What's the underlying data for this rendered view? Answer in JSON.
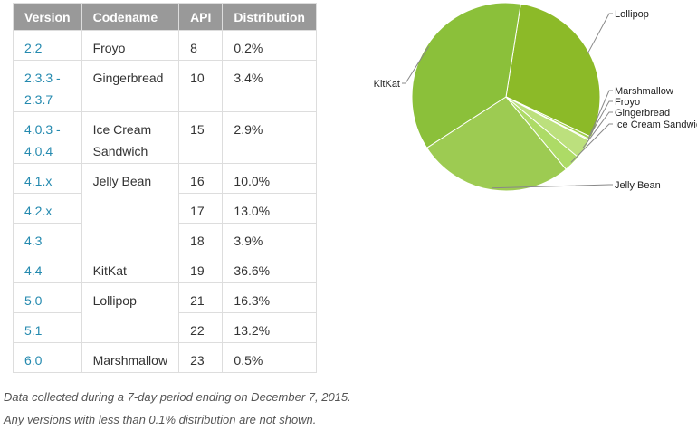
{
  "table": {
    "headers": [
      "Version",
      "Codename",
      "API",
      "Distribution"
    ],
    "rows": [
      {
        "version": "2.2",
        "codename": "Froyo",
        "api": "8",
        "dist": "0.2%"
      },
      {
        "version": "2.3.3 -\n2.3.7",
        "codename": "Gingerbread",
        "api": "10",
        "dist": "3.4%"
      },
      {
        "version": "4.0.3 -\n4.0.4",
        "codename": "Ice Cream\nSandwich",
        "api": "15",
        "dist": "2.9%"
      },
      {
        "version": "4.1.x",
        "codename": "Jelly Bean",
        "api": "16",
        "dist": "10.0%"
      },
      {
        "version": "4.2.x",
        "codename": "",
        "api": "17",
        "dist": "13.0%"
      },
      {
        "version": "4.3",
        "codename": "",
        "api": "18",
        "dist": "3.9%"
      },
      {
        "version": "4.4",
        "codename": "KitKat",
        "api": "19",
        "dist": "36.6%"
      },
      {
        "version": "5.0",
        "codename": "Lollipop",
        "api": "21",
        "dist": "16.3%"
      },
      {
        "version": "5.1",
        "codename": "",
        "api": "22",
        "dist": "13.2%"
      },
      {
        "version": "6.0",
        "codename": "Marshmallow",
        "api": "23",
        "dist": "0.5%"
      }
    ]
  },
  "notes": {
    "line1": "Data collected during a 7-day period ending on December 7, 2015.",
    "line2": "Any versions with less than 0.1% distribution are not shown."
  },
  "chart_data": {
    "type": "pie",
    "slices": [
      {
        "label": "Lollipop",
        "value": 29.5,
        "color": "#8cba28"
      },
      {
        "label": "Marshmallow",
        "value": 0.5,
        "color": "#9fd04a"
      },
      {
        "label": "Froyo",
        "value": 0.2,
        "color": "#c6e890"
      },
      {
        "label": "Gingerbread",
        "value": 3.4,
        "color": "#bce07d"
      },
      {
        "label": "Ice Cream Sandwich",
        "value": 2.9,
        "color": "#addb66"
      },
      {
        "label": "Jelly Bean",
        "value": 26.9,
        "color": "#9dcb52"
      },
      {
        "label": "KitKat",
        "value": 36.6,
        "color": "#8bc03a"
      }
    ],
    "start_angle_deg": 9,
    "legend": "callouts"
  },
  "colors": {
    "header_bg": "#999999",
    "link": "#258aaf",
    "border": "#dddddd"
  }
}
